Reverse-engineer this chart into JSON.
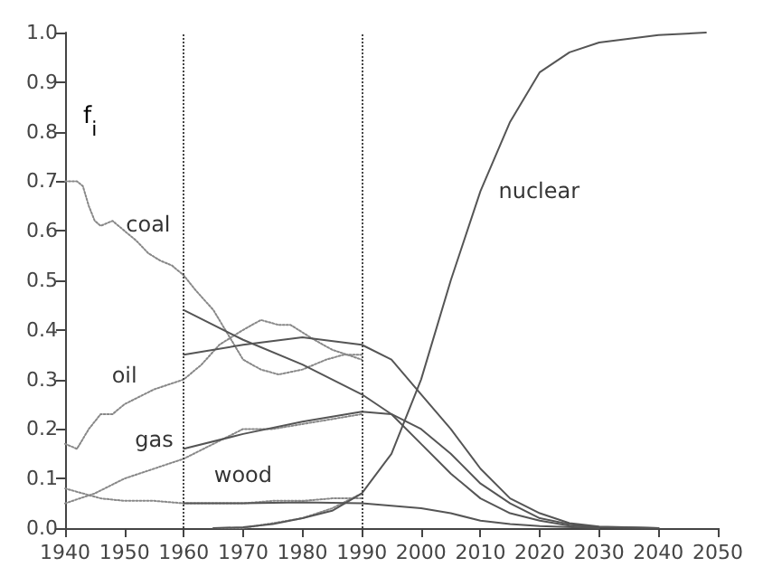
{
  "chart_data": {
    "type": "line",
    "ylabel": "f$_{i}$",
    "xlim": [
      1940,
      2050
    ],
    "xticks": [
      1940,
      1950,
      1960,
      1970,
      1980,
      1990,
      2000,
      2010,
      2020,
      2030,
      2040,
      2050
    ],
    "ylim": [
      0,
      1
    ],
    "yticks": [
      {
        "value": 0,
        "label": "0.0"
      },
      {
        "value": 0.1,
        "label": "0.1"
      },
      {
        "value": 0.2,
        "label": "0.2"
      },
      {
        "value": 0.3,
        "label": "0.3"
      },
      {
        "value": 0.4,
        "label": "0.4"
      },
      {
        "value": 0.5,
        "label": "0.5"
      },
      {
        "value": 0.6,
        "label": "0.6"
      },
      {
        "value": 0.7,
        "label": "0.7"
      },
      {
        "value": 0.8,
        "label": "0.8"
      },
      {
        "value": 0.9,
        "label": "0.9"
      },
      {
        "value": 1,
        "label": "1.0"
      }
    ],
    "grid": false,
    "marker": "none",
    "series": [
      {
        "color": "#888888",
        "line_style": "dotted",
        "x": [
          1940,
          1942,
          1943,
          1944,
          1945,
          1946,
          1948,
          1950,
          1952,
          1954,
          1956,
          1958,
          1960,
          1962,
          1965,
          1968,
          1970,
          1973,
          1976,
          1980,
          1984,
          1987,
          1990
        ],
        "values": [
          0.7,
          0.7,
          0.69,
          0.65,
          0.62,
          0.61,
          0.62,
          0.6,
          0.58,
          0.555,
          0.54,
          0.53,
          0.51,
          0.48,
          0.44,
          0.38,
          0.34,
          0.32,
          0.31,
          0.32,
          0.34,
          0.35,
          0.35
        ]
      },
      {
        "color": "#888888",
        "line_style": "dotted",
        "x": [
          1940,
          1942,
          1944,
          1946,
          1948,
          1950,
          1955,
          1960,
          1963,
          1966,
          1970,
          1973,
          1976,
          1978,
          1982,
          1985,
          1990
        ],
        "values": [
          0.17,
          0.16,
          0.2,
          0.23,
          0.23,
          0.25,
          0.28,
          0.3,
          0.33,
          0.37,
          0.4,
          0.42,
          0.41,
          0.41,
          0.38,
          0.36,
          0.34
        ]
      },
      {
        "color": "#888888",
        "line_style": "dotted",
        "x": [
          1940,
          1945,
          1950,
          1955,
          1960,
          1965,
          1970,
          1975,
          1980,
          1985,
          1990
        ],
        "values": [
          0.05,
          0.07,
          0.1,
          0.12,
          0.14,
          0.17,
          0.2,
          0.2,
          0.21,
          0.22,
          0.23
        ]
      },
      {
        "color": "#888888",
        "line_style": "dotted",
        "x": [
          1940,
          1943,
          1946,
          1950,
          1955,
          1960,
          1965,
          1970,
          1975,
          1980,
          1985,
          1990
        ],
        "values": [
          0.08,
          0.07,
          0.06,
          0.055,
          0.055,
          0.05,
          0.05,
          0.05,
          0.055,
          0.055,
          0.06,
          0.06
        ]
      },
      {
        "color": "#888888",
        "line_style": "dotted",
        "x": [
          1965,
          1970,
          1975,
          1980,
          1985,
          1990
        ],
        "values": [
          0,
          0,
          0.01,
          0.02,
          0.04,
          0.07
        ]
      },
      {
        "color": "#555555",
        "line_style": "solid",
        "x": [
          1960,
          1970,
          1980,
          1990,
          1995,
          2000,
          2005,
          2010,
          2015,
          2020,
          2025,
          2030,
          2040
        ],
        "values": [
          0.44,
          0.38,
          0.33,
          0.27,
          0.23,
          0.17,
          0.11,
          0.06,
          0.03,
          0.015,
          0.005,
          0.002,
          0
        ]
      },
      {
        "color": "#555555",
        "line_style": "solid",
        "x": [
          1960,
          1970,
          1980,
          1990,
          1995,
          2000,
          2005,
          2010,
          2015,
          2020,
          2025,
          2030,
          2040
        ],
        "values": [
          0.35,
          0.37,
          0.385,
          0.37,
          0.34,
          0.27,
          0.2,
          0.12,
          0.06,
          0.03,
          0.01,
          0.003,
          0
        ]
      },
      {
        "color": "#555555",
        "line_style": "solid",
        "x": [
          1960,
          1970,
          1980,
          1990,
          1995,
          2000,
          2005,
          2010,
          2015,
          2020,
          2025,
          2030,
          2040
        ],
        "values": [
          0.16,
          0.19,
          0.215,
          0.235,
          0.23,
          0.2,
          0.15,
          0.09,
          0.05,
          0.02,
          0.008,
          0.002,
          0
        ]
      },
      {
        "color": "#555555",
        "line_style": "solid",
        "x": [
          1960,
          1970,
          1980,
          1990,
          2000,
          2005,
          2010,
          2015,
          2020,
          2030
        ],
        "values": [
          0.05,
          0.05,
          0.052,
          0.05,
          0.04,
          0.03,
          0.015,
          0.008,
          0.004,
          0
        ]
      },
      {
        "color": "#555555",
        "line_style": "solid",
        "x": [
          1965,
          1970,
          1975,
          1980,
          1985,
          1990,
          1995,
          2000,
          2005,
          2010,
          2015,
          2020,
          2025,
          2030,
          2040,
          2048
        ],
        "values": [
          0,
          0.002,
          0.008,
          0.02,
          0.035,
          0.07,
          0.15,
          0.3,
          0.5,
          0.68,
          0.82,
          0.92,
          0.96,
          0.98,
          0.995,
          1
        ]
      }
    ],
    "ref_lines": [
      {
        "axis": "x",
        "value": 1960,
        "line_style": "dotted",
        "color": "#444444"
      },
      {
        "axis": "x",
        "value": 1990,
        "line_style": "dotted",
        "color": "#444444"
      }
    ],
    "annotations": [
      {
        "text": "coal",
        "x": 1954,
        "y": 0.555
      },
      {
        "text": "oil",
        "x": 1950,
        "y": 0.25
      },
      {
        "text": "gas",
        "x": 1955,
        "y": 0.12
      },
      {
        "text": "wood",
        "x": 1970,
        "y": 0.05
      },
      {
        "text": "nuclear",
        "x": 2010,
        "y": 0.68
      }
    ]
  }
}
